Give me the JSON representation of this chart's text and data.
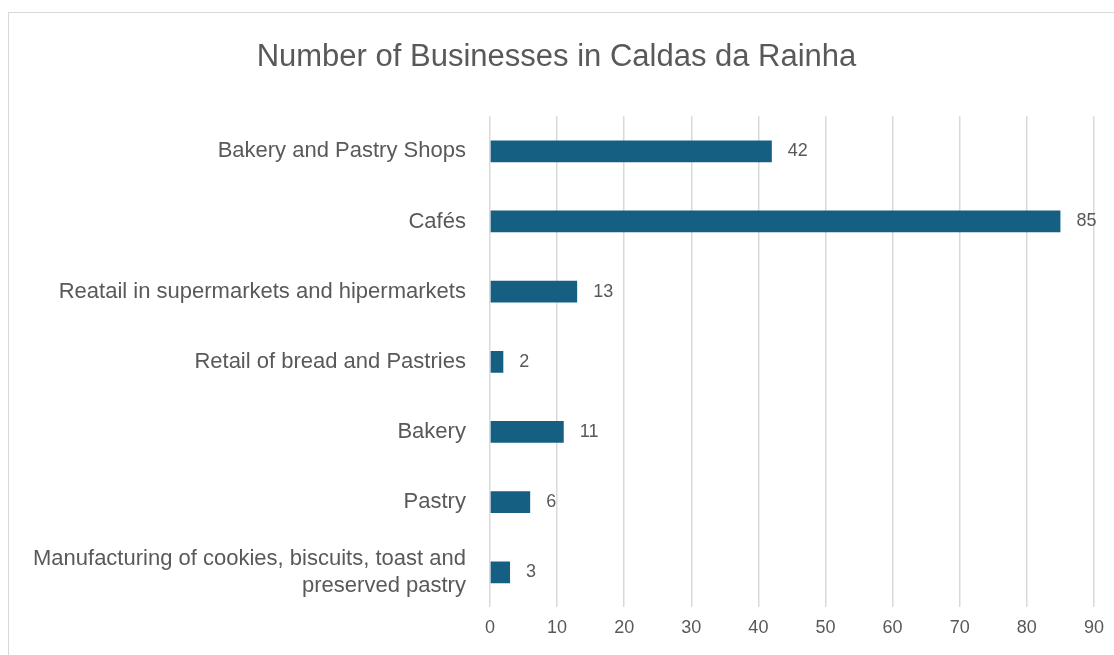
{
  "chart_data": {
    "type": "bar",
    "orientation": "horizontal",
    "title": "Number of Businesses in Caldas da Rainha",
    "categories": [
      "Bakery and Pastry Shops",
      "Cafés",
      "Reatail in supermarkets and hipermarkets",
      "Retail of bread and Pastries",
      "Bakery",
      "Pastry",
      "Manufacturing of cookies, biscuits, toast and preserved pastry"
    ],
    "values": [
      42,
      85,
      13,
      2,
      11,
      6,
      3
    ],
    "color": "#156082",
    "xlim": [
      0,
      90
    ],
    "xticks": [
      0,
      10,
      20,
      30,
      40,
      50,
      60,
      70,
      80,
      90
    ],
    "grid": "x",
    "data_labels": true,
    "legend": false
  }
}
